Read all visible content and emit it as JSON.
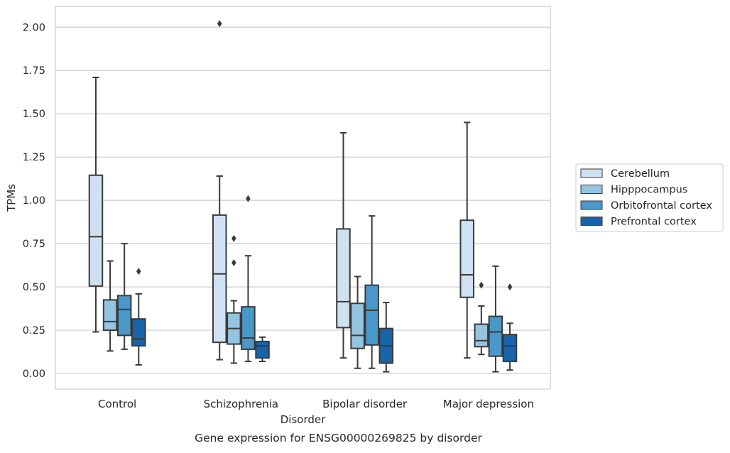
{
  "chart_data": {
    "type": "boxplot",
    "title": "Gene expression for ENSG00000269825 by disorder",
    "xlabel": "Disorder",
    "ylabel": "TPMs",
    "ylim": [
      -0.09,
      2.12
    ],
    "yticks": [
      0.0,
      0.25,
      0.5,
      0.75,
      1.0,
      1.25,
      1.5,
      1.75,
      2.0
    ],
    "ytick_labels": [
      "0.00",
      "0.25",
      "0.50",
      "0.75",
      "1.00",
      "1.25",
      "1.50",
      "1.75",
      "2.00"
    ],
    "categories": [
      "Control",
      "Schizophrenia",
      "Bipolar disorder",
      "Major depression"
    ],
    "grid": "horizontal",
    "legend_position": "outside-right",
    "series": [
      {
        "name": "Cerebellum",
        "color": "#d0e1f2",
        "boxes": [
          {
            "whislo": 0.24,
            "q1": 0.505,
            "median": 0.79,
            "q3": 1.145,
            "whishi": 1.71,
            "fliers": []
          },
          {
            "whislo": 0.08,
            "q1": 0.18,
            "median": 0.575,
            "q3": 0.915,
            "whishi": 1.14,
            "fliers": [
              2.02
            ]
          },
          {
            "whislo": 0.09,
            "q1": 0.265,
            "median": 0.415,
            "q3": 0.835,
            "whishi": 1.39,
            "fliers": []
          },
          {
            "whislo": 0.09,
            "q1": 0.44,
            "median": 0.57,
            "q3": 0.885,
            "whishi": 1.45,
            "fliers": []
          }
        ]
      },
      {
        "name": "Hipppocampus",
        "color": "#94c4df",
        "boxes": [
          {
            "whislo": 0.13,
            "q1": 0.25,
            "median": 0.3,
            "q3": 0.425,
            "whishi": 0.65,
            "fliers": []
          },
          {
            "whislo": 0.06,
            "q1": 0.17,
            "median": 0.26,
            "q3": 0.35,
            "whishi": 0.42,
            "fliers": [
              0.64,
              0.78
            ]
          },
          {
            "whislo": 0.03,
            "q1": 0.145,
            "median": 0.22,
            "q3": 0.405,
            "whishi": 0.56,
            "fliers": []
          },
          {
            "whislo": 0.11,
            "q1": 0.155,
            "median": 0.19,
            "q3": 0.285,
            "whishi": 0.39,
            "fliers": [
              0.51
            ]
          }
        ]
      },
      {
        "name": "Orbitofrontal cortex",
        "color": "#4a98c9",
        "boxes": [
          {
            "whislo": 0.14,
            "q1": 0.22,
            "median": 0.37,
            "q3": 0.45,
            "whishi": 0.75,
            "fliers": []
          },
          {
            "whislo": 0.07,
            "q1": 0.14,
            "median": 0.205,
            "q3": 0.385,
            "whishi": 0.68,
            "fliers": [
              1.01
            ]
          },
          {
            "whislo": 0.03,
            "q1": 0.165,
            "median": 0.365,
            "q3": 0.51,
            "whishi": 0.91,
            "fliers": []
          },
          {
            "whislo": 0.01,
            "q1": 0.1,
            "median": 0.24,
            "q3": 0.33,
            "whishi": 0.62,
            "fliers": []
          }
        ]
      },
      {
        "name": "Prefrontal cortex",
        "color": "#1764ab",
        "boxes": [
          {
            "whislo": 0.05,
            "q1": 0.16,
            "median": 0.2,
            "q3": 0.315,
            "whishi": 0.46,
            "fliers": [
              0.59
            ]
          },
          {
            "whislo": 0.07,
            "q1": 0.09,
            "median": 0.16,
            "q3": 0.185,
            "whishi": 0.21,
            "fliers": []
          },
          {
            "whislo": 0.01,
            "q1": 0.06,
            "median": 0.16,
            "q3": 0.26,
            "whishi": 0.41,
            "fliers": []
          },
          {
            "whislo": 0.02,
            "q1": 0.07,
            "median": 0.16,
            "q3": 0.225,
            "whishi": 0.29,
            "fliers": [
              0.5
            ]
          }
        ]
      }
    ]
  }
}
